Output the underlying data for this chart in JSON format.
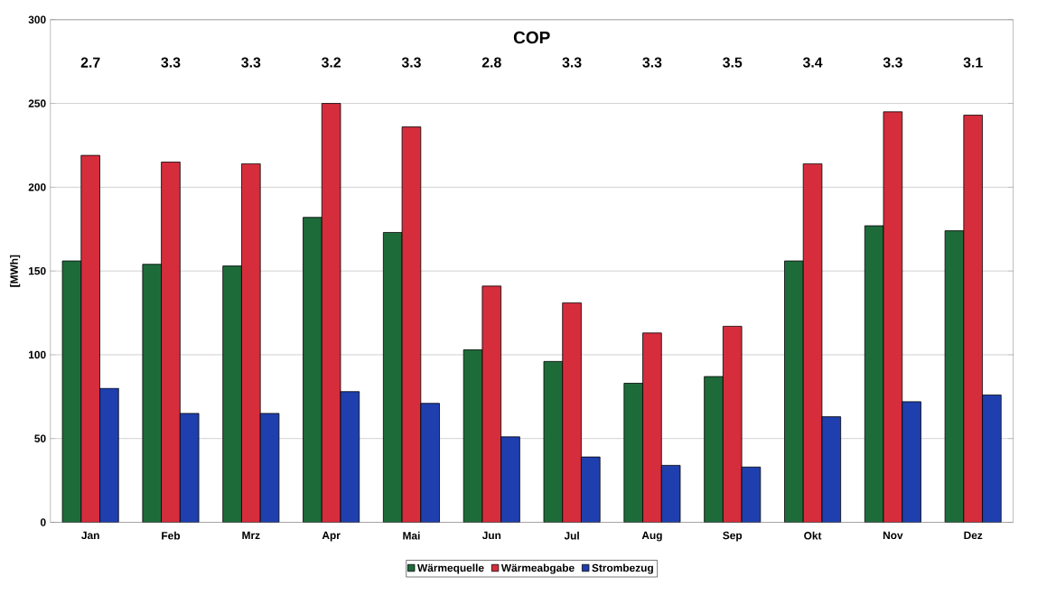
{
  "chart_data": {
    "type": "bar",
    "ylabel": "[MWh]",
    "categories": [
      "Jan",
      "Feb",
      "Mrz",
      "Apr",
      "Mai",
      "Jun",
      "Jul",
      "Aug",
      "Sep",
      "Okt",
      "Nov",
      "Dez"
    ],
    "series": [
      {
        "name": "Wärmequelle",
        "color": "#1e6b3a",
        "values": [
          156,
          154,
          153,
          182,
          173,
          103,
          96,
          83,
          87,
          156,
          177,
          174
        ]
      },
      {
        "name": "Wärmeabgabe",
        "color": "#d62d3c",
        "values": [
          219,
          215,
          214,
          250,
          236,
          141,
          131,
          113,
          117,
          214,
          245,
          243
        ]
      },
      {
        "name": "Strombezug",
        "color": "#1f3fae",
        "values": [
          80,
          65,
          65,
          78,
          71,
          51,
          39,
          34,
          33,
          63,
          72,
          76
        ]
      }
    ],
    "annotations": [
      "COP",
      "2.7",
      "3.3",
      "3.3",
      "3.2",
      "3.3",
      "2.8",
      "3.3",
      "3.3",
      "3.5",
      "3.4",
      "3.3",
      "3.1"
    ],
    "ylim": [
      0,
      300
    ],
    "yticks": [
      0,
      50,
      100,
      150,
      200,
      250,
      300
    ],
    "grid": "y",
    "legend": "bottom"
  }
}
